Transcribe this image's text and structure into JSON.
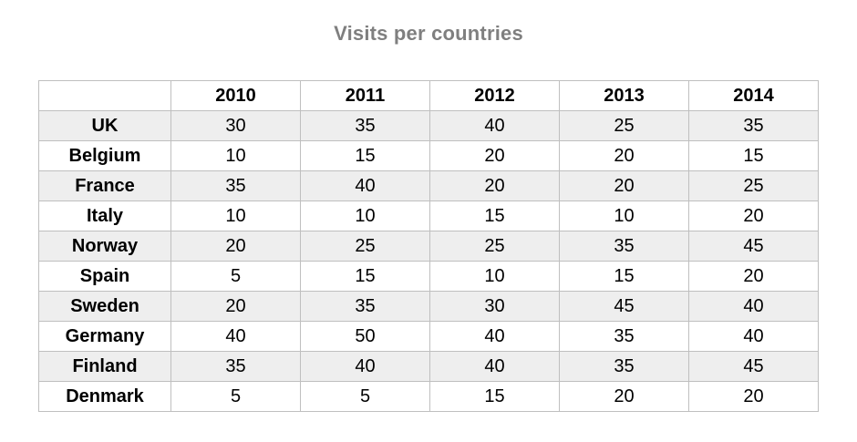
{
  "title": "Visits per countries",
  "colors": {
    "title_text": "#7f7f7f",
    "table_border": "#bfbfbf",
    "row_stripe": "#eeeeee",
    "cell_text": "#000000",
    "background": "#ffffff"
  },
  "chart_data": {
    "type": "table",
    "title": "Visits per countries",
    "columns": [
      "",
      "2010",
      "2011",
      "2012",
      "2013",
      "2014"
    ],
    "rows": [
      {
        "label": "UK",
        "values": [
          30,
          35,
          40,
          25,
          35
        ]
      },
      {
        "label": "Belgium",
        "values": [
          10,
          15,
          20,
          20,
          15
        ]
      },
      {
        "label": "France",
        "values": [
          35,
          40,
          20,
          20,
          25
        ]
      },
      {
        "label": "Italy",
        "values": [
          10,
          10,
          15,
          10,
          20
        ]
      },
      {
        "label": "Norway",
        "values": [
          20,
          25,
          25,
          35,
          45
        ]
      },
      {
        "label": "Spain",
        "values": [
          5,
          15,
          10,
          15,
          20
        ]
      },
      {
        "label": "Sweden",
        "values": [
          20,
          35,
          30,
          45,
          40
        ]
      },
      {
        "label": "Germany",
        "values": [
          40,
          50,
          40,
          35,
          40
        ]
      },
      {
        "label": "Finland",
        "values": [
          35,
          40,
          40,
          35,
          45
        ]
      },
      {
        "label": "Denmark",
        "values": [
          5,
          5,
          15,
          20,
          20
        ]
      }
    ],
    "layout": {
      "striped_rows": "odd data rows shaded",
      "header_row_bold": true,
      "first_column_bold": true
    }
  }
}
